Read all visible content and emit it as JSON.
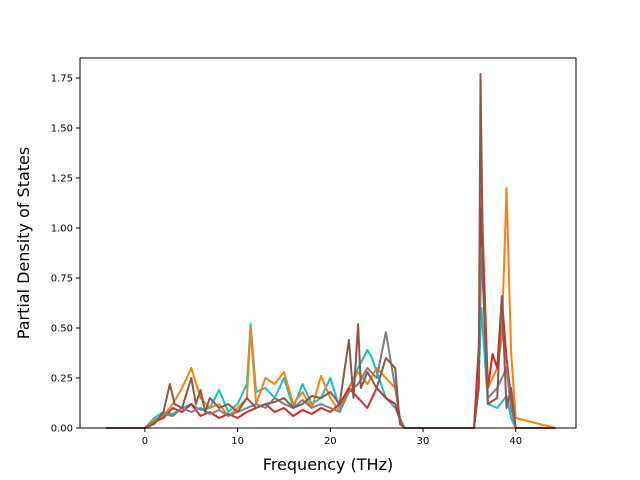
{
  "chart_data": {
    "type": "line",
    "title": "",
    "xlabel": "Frequency (THz)",
    "ylabel": "Partial Density of States",
    "xlim": [
      -7,
      46.5
    ],
    "ylim": [
      0,
      1.85
    ],
    "xticks": [
      0,
      10,
      20,
      30,
      40
    ],
    "yticks": [
      0.0,
      0.25,
      0.5,
      0.75,
      1.0,
      1.25,
      1.5,
      1.75
    ],
    "xtick_labels": [
      "0",
      "10",
      "20",
      "30",
      "40"
    ],
    "ytick_labels": [
      "0.00",
      "0.25",
      "0.50",
      "0.75",
      "1.00",
      "1.25",
      "1.50",
      "1.75"
    ],
    "grid": false,
    "legend": "none",
    "series": [
      {
        "color": "#17becf",
        "x": [
          -4.2,
          0,
          1,
          2,
          3,
          4,
          5,
          6,
          7,
          8,
          9,
          10,
          11,
          11.4,
          12,
          13,
          14,
          15,
          16,
          17,
          18,
          19,
          20,
          21,
          22,
          23,
          24,
          24.5,
          25,
          26,
          27,
          27.5,
          28,
          35.5,
          36,
          36.3,
          37,
          38,
          39,
          39.5,
          40,
          44.3
        ],
        "y": [
          0,
          0,
          0.05,
          0.08,
          0.07,
          0.1,
          0.12,
          0.09,
          0.1,
          0.19,
          0.08,
          0.12,
          0.22,
          0.52,
          0.18,
          0.2,
          0.15,
          0.25,
          0.1,
          0.22,
          0.12,
          0.15,
          0.25,
          0.1,
          0.2,
          0.3,
          0.39,
          0.35,
          0.28,
          0.15,
          0.1,
          0.05,
          0,
          0,
          0.25,
          0.6,
          0.12,
          0.1,
          0.16,
          0.05,
          0,
          0
        ]
      },
      {
        "color": "#ff7f0e",
        "x": [
          -4.2,
          0,
          1,
          2,
          3,
          4,
          5,
          6,
          7,
          8,
          9,
          10,
          11,
          11.4,
          12,
          13,
          14,
          15,
          16,
          17,
          18,
          19,
          20,
          21,
          22,
          23,
          24,
          25,
          26,
          27,
          27.5,
          28,
          35.5,
          36,
          36.3,
          37,
          38,
          38.5,
          39,
          39.5,
          40,
          44.3
        ],
        "y": [
          0,
          0,
          0.04,
          0.06,
          0.12,
          0.2,
          0.3,
          0.15,
          0.1,
          0.12,
          0.06,
          0.1,
          0.15,
          0.5,
          0.12,
          0.25,
          0.22,
          0.28,
          0.12,
          0.18,
          0.1,
          0.26,
          0.15,
          0.08,
          0.2,
          0.28,
          0.22,
          0.3,
          0.25,
          0.2,
          0.05,
          0,
          0,
          0.3,
          1.2,
          0.2,
          0.3,
          0.45,
          1.2,
          0.38,
          0.05,
          0
        ]
      },
      {
        "color": "#d62728",
        "x": [
          -4.2,
          0,
          1,
          2,
          3,
          4,
          5,
          6,
          7,
          8,
          9,
          10,
          11,
          12,
          13,
          14,
          15,
          16,
          17,
          18,
          19,
          20,
          21,
          22,
          23,
          24,
          25,
          26,
          27,
          27.5,
          28,
          35.5,
          36,
          36.3,
          37,
          37.5,
          38,
          38.5,
          39,
          39.5,
          40,
          44.3
        ],
        "y": [
          0,
          0,
          0.03,
          0.05,
          0.1,
          0.08,
          0.12,
          0.06,
          0.08,
          0.05,
          0.07,
          0.05,
          0.08,
          0.1,
          0.12,
          0.08,
          0.1,
          0.06,
          0.09,
          0.07,
          0.1,
          0.08,
          0.12,
          0.2,
          0.15,
          0.1,
          0.2,
          0.15,
          0.12,
          0.04,
          0,
          0,
          0.4,
          1.1,
          0.2,
          0.37,
          0.3,
          0.65,
          0.35,
          0.15,
          0,
          0
        ]
      },
      {
        "color": "#7f7f7f",
        "x": [
          -4.2,
          0,
          1,
          2,
          3,
          4,
          5,
          6,
          7,
          8,
          9,
          10,
          11,
          12,
          13,
          14,
          15,
          16,
          17,
          18,
          19,
          20,
          21,
          22,
          23,
          24,
          25,
          26,
          27,
          27.5,
          28,
          35.5,
          36,
          36.3,
          37,
          38,
          39,
          39.5,
          40,
          44.3
        ],
        "y": [
          0,
          0,
          0.03,
          0.07,
          0.06,
          0.1,
          0.08,
          0.1,
          0.07,
          0.09,
          0.06,
          0.08,
          0.1,
          0.12,
          0.1,
          0.15,
          0.12,
          0.1,
          0.14,
          0.1,
          0.12,
          0.1,
          0.08,
          0.18,
          0.22,
          0.3,
          0.25,
          0.48,
          0.2,
          0.05,
          0,
          0,
          0.2,
          0.9,
          0.15,
          0.2,
          0.3,
          0.1,
          0,
          0
        ]
      },
      {
        "color": "#8c564b",
        "x": [
          -4.2,
          0,
          1,
          2,
          2.7,
          3.2,
          4,
          5,
          5.5,
          6,
          6.5,
          7,
          8,
          9,
          10,
          11,
          12,
          13,
          14,
          15,
          16,
          17,
          18,
          19,
          20,
          21,
          22,
          22.5,
          23,
          23.3,
          24,
          25,
          26,
          27,
          27.5,
          28,
          35.5,
          36,
          36.2,
          36.5,
          37,
          38,
          38.5,
          39,
          39.5,
          40,
          44.3
        ],
        "y": [
          0,
          0,
          0.02,
          0.08,
          0.22,
          0.12,
          0.1,
          0.25,
          0.12,
          0.19,
          0.08,
          0.15,
          0.1,
          0.12,
          0.08,
          0.15,
          0.1,
          0.12,
          0.13,
          0.15,
          0.1,
          0.12,
          0.16,
          0.15,
          0.18,
          0.12,
          0.44,
          0.15,
          0.52,
          0.2,
          0.28,
          0.2,
          0.35,
          0.3,
          0.02,
          0,
          0,
          0.2,
          1.77,
          0.7,
          0.12,
          0.15,
          0.66,
          0.1,
          0.2,
          0,
          0
        ]
      }
    ]
  }
}
